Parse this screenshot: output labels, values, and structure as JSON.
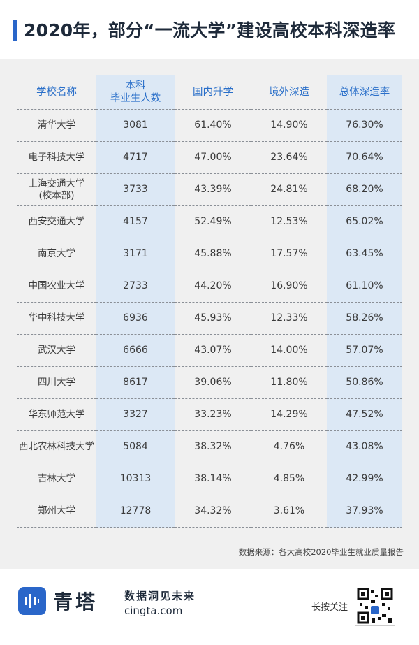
{
  "title": "2020年，部分“一流大学”建设高校本科深造率",
  "table": {
    "headers": [
      "学校名称",
      "本科\n毕业生人数",
      "国内升学",
      "境外深造",
      "总体深造率"
    ],
    "header_col2_line1": "本科",
    "header_col2_line2": "毕业生人数",
    "rows": [
      {
        "name": "清华大学",
        "grads": "3081",
        "domestic": "61.40%",
        "abroad": "14.90%",
        "total": "76.30%"
      },
      {
        "name": "电子科技大学",
        "grads": "4717",
        "domestic": "47.00%",
        "abroad": "23.64%",
        "total": "70.64%"
      },
      {
        "name": "上海交通大学\n(校本部)",
        "name_line1": "上海交通大学",
        "name_line2": "(校本部)",
        "grads": "3733",
        "domestic": "43.39%",
        "abroad": "24.81%",
        "total": "68.20%"
      },
      {
        "name": "西安交通大学",
        "grads": "4157",
        "domestic": "52.49%",
        "abroad": "12.53%",
        "total": "65.02%"
      },
      {
        "name": "南京大学",
        "grads": "3171",
        "domestic": "45.88%",
        "abroad": "17.57%",
        "total": "63.45%"
      },
      {
        "name": "中国农业大学",
        "grads": "2733",
        "domestic": "44.20%",
        "abroad": "16.90%",
        "total": "61.10%"
      },
      {
        "name": "华中科技大学",
        "grads": "6936",
        "domestic": "45.93%",
        "abroad": "12.33%",
        "total": "58.26%"
      },
      {
        "name": "武汉大学",
        "grads": "6666",
        "domestic": "43.07%",
        "abroad": "14.00%",
        "total": "57.07%"
      },
      {
        "name": "四川大学",
        "grads": "8617",
        "domestic": "39.06%",
        "abroad": "11.80%",
        "total": "50.86%"
      },
      {
        "name": "华东师范大学",
        "grads": "3327",
        "domestic": "33.23%",
        "abroad": "14.29%",
        "total": "47.52%"
      },
      {
        "name": "西北农林科技大学",
        "grads": "5084",
        "domestic": "38.32%",
        "abroad": "4.76%",
        "total": "43.08%"
      },
      {
        "name": "吉林大学",
        "grads": "10313",
        "domestic": "38.14%",
        "abroad": "4.85%",
        "total": "42.99%"
      },
      {
        "name": "郑州大学",
        "grads": "12778",
        "domestic": "34.32%",
        "abroad": "3.61%",
        "total": "37.93%"
      }
    ]
  },
  "source": "数据来源：各大高校2020毕业生就业质量报告",
  "footer": {
    "logo_text": "青塔",
    "slogan": "数据洞见未来",
    "site": "cingta.com",
    "longpress": "长按关注",
    "logo_icon": "cingta-logo-icon",
    "qr_icon": "qr-code-icon"
  },
  "colors": {
    "accent": "#2a66c9",
    "highlight": "#dce8f5",
    "panel": "#f0f0f0"
  }
}
